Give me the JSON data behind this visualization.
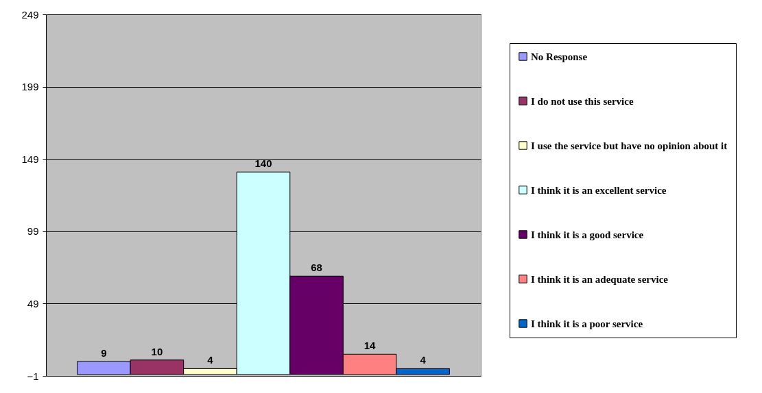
{
  "chart_data": {
    "type": "bar",
    "categories": [
      null
    ],
    "series": [
      {
        "name": "No Response",
        "color": "#9999ff",
        "values": [
          9
        ]
      },
      {
        "name": "I do not use this service",
        "color": "#993366",
        "values": [
          10
        ]
      },
      {
        "name": "I use the service but have no opinion about it",
        "color": "#ffffcc",
        "values": [
          4
        ]
      },
      {
        "name": "I think it is an excellent service",
        "color": "#ccffff",
        "values": [
          140
        ]
      },
      {
        "name": "I think it is a good service",
        "color": "#660066",
        "values": [
          68
        ]
      },
      {
        "name": "I think it is an adequate service",
        "color": "#ff8080",
        "values": [
          14
        ]
      },
      {
        "name": "I think it is a poor service",
        "color": "#0066cc",
        "values": [
          4
        ]
      }
    ],
    "ylim": [
      -1,
      249
    ],
    "yticks": [
      -1,
      49,
      99,
      149,
      199,
      249
    ],
    "grid": "y",
    "data_labels": true,
    "legend": "right"
  }
}
